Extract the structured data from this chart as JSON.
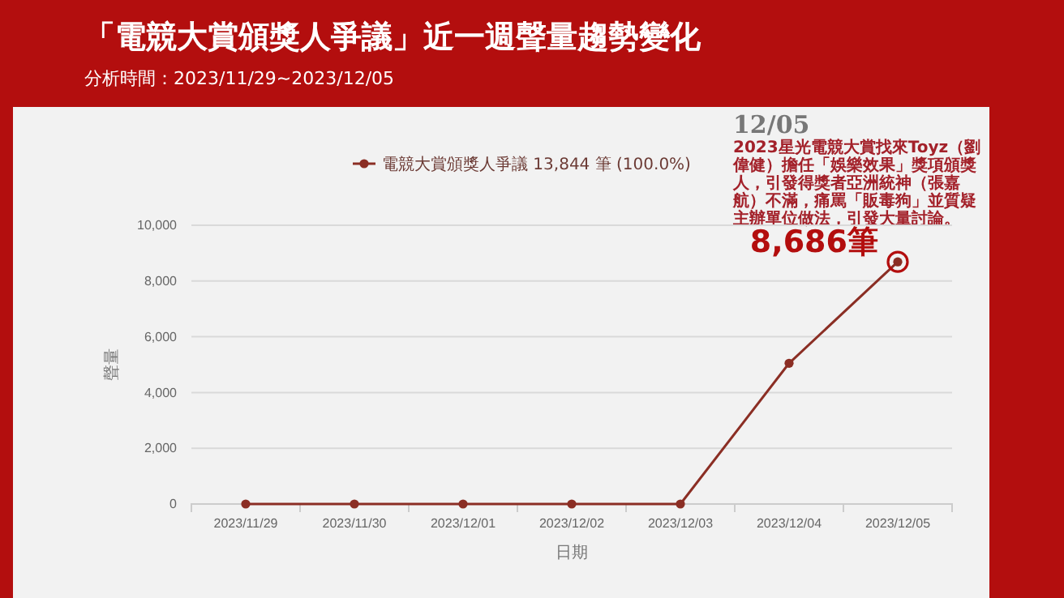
{
  "chart_data": {
    "type": "line",
    "title": "「電競大賞頒獎人爭議」近一週聲量趨勢變化",
    "subtitle": "分析時間：2023/11/29~2023/12/05",
    "xlabel": "日期",
    "ylabel": "聲量",
    "categories": [
      "2023/11/29",
      "2023/11/30",
      "2023/12/01",
      "2023/12/02",
      "2023/12/03",
      "2023/12/04",
      "2023/12/05"
    ],
    "series": [
      {
        "name": "電競大賞頒獎人爭議 13,844 筆 (100.0%)",
        "color": "#8b2e24",
        "values": [
          0,
          0,
          0,
          0,
          0,
          5050,
          8686
        ]
      }
    ],
    "ylim": [
      0,
      10000
    ],
    "yticks": [
      {
        "value": 0,
        "label": "0"
      },
      {
        "value": 2000,
        "label": "2,000"
      },
      {
        "value": 4000,
        "label": "4,000"
      },
      {
        "value": 6000,
        "label": "6,000"
      },
      {
        "value": 8000,
        "label": "8,000"
      },
      {
        "value": 10000,
        "label": "10,000"
      }
    ],
    "grid": "y",
    "legend": "top",
    "marker": "circle",
    "line_style": "solid",
    "annotations": [
      "12/05",
      "2023星光電競大賞找來Toyz（劉偉健）擔任「娛樂效果」獎項頒獎人，引發得獎者亞洲統神（張嘉航）不滿，痛罵「販毒狗」並質疑主辦單位做法，引發大量討論。",
      {
        "text": "8,686筆",
        "x": "2023/12/05",
        "y": 8686
      }
    ]
  }
}
